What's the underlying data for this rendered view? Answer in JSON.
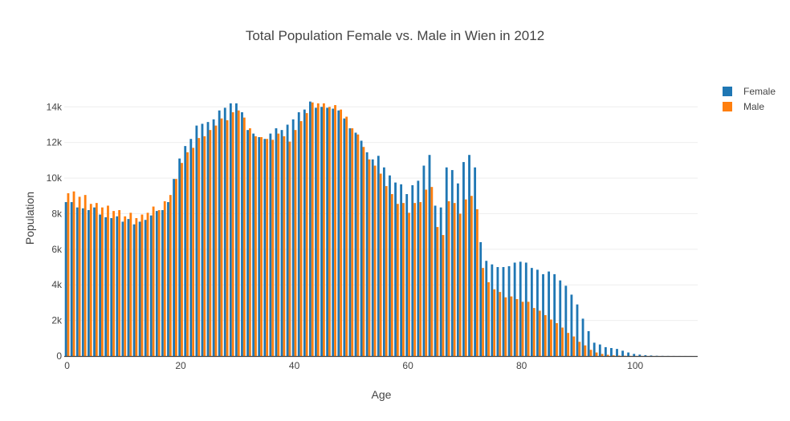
{
  "chart_data": {
    "type": "bar",
    "title": "Total Population Female vs. Male in Wien in 2012",
    "xlabel": "Age",
    "ylabel": "Population",
    "xlim": [
      -0.5,
      111
    ],
    "ylim": [
      0,
      15500
    ],
    "xticks": [
      0,
      20,
      40,
      60,
      80,
      100
    ],
    "yticks": [
      0,
      2000,
      4000,
      6000,
      8000,
      10000,
      12000,
      14000
    ],
    "ytick_labels": [
      "0",
      "2k",
      "4k",
      "6k",
      "8k",
      "10k",
      "12k",
      "14k"
    ],
    "grid": true,
    "legend_position": "top-right",
    "series": [
      {
        "name": "Female",
        "color": "#1f77b4",
        "x": [
          0,
          1,
          2,
          3,
          4,
          5,
          6,
          7,
          8,
          9,
          10,
          11,
          12,
          13,
          14,
          15,
          16,
          17,
          18,
          19,
          20,
          21,
          22,
          23,
          24,
          25,
          26,
          27,
          28,
          29,
          30,
          31,
          32,
          33,
          34,
          35,
          36,
          37,
          38,
          39,
          40,
          41,
          42,
          43,
          44,
          45,
          46,
          47,
          48,
          49,
          50,
          51,
          52,
          53,
          54,
          55,
          56,
          57,
          58,
          59,
          60,
          61,
          62,
          63,
          64,
          65,
          66,
          67,
          68,
          69,
          70,
          71,
          72,
          73,
          74,
          75,
          76,
          77,
          78,
          79,
          80,
          81,
          82,
          83,
          84,
          85,
          86,
          87,
          88,
          89,
          90,
          91,
          92,
          93,
          94,
          95,
          96,
          97,
          98,
          99,
          100,
          101,
          102,
          103,
          104,
          105,
          106,
          107,
          108,
          109,
          110
        ],
        "values": [
          8650,
          8650,
          8350,
          8300,
          8200,
          8350,
          7950,
          7800,
          7750,
          7850,
          7550,
          7700,
          7400,
          7550,
          7650,
          7900,
          8150,
          8200,
          8650,
          9950,
          11100,
          11800,
          12200,
          12950,
          13050,
          13150,
          13300,
          13800,
          13950,
          14200,
          14200,
          13700,
          12700,
          12500,
          12300,
          12200,
          12500,
          12800,
          12700,
          13000,
          13300,
          13700,
          13850,
          14300,
          13950,
          14000,
          13950,
          13900,
          13800,
          13350,
          12800,
          12550,
          12100,
          11450,
          11050,
          11250,
          10600,
          10150,
          9750,
          9650,
          9100,
          9600,
          9850,
          10700,
          11300,
          8450,
          8350,
          10600,
          10450,
          9700,
          10900,
          11300,
          10600,
          6400,
          5350,
          5150,
          5000,
          5000,
          5050,
          5250,
          5300,
          5250,
          4950,
          4850,
          4600,
          4750,
          4600,
          4250,
          3950,
          3450,
          2900,
          2100,
          1400,
          750,
          650,
          500,
          450,
          400,
          300,
          200,
          120,
          80,
          50,
          30,
          15,
          8,
          5,
          3,
          2,
          1,
          1
        ]
      },
      {
        "name": "Male",
        "color": "#ff7f0e",
        "x": [
          0,
          1,
          2,
          3,
          4,
          5,
          6,
          7,
          8,
          9,
          10,
          11,
          12,
          13,
          14,
          15,
          16,
          17,
          18,
          19,
          20,
          21,
          22,
          23,
          24,
          25,
          26,
          27,
          28,
          29,
          30,
          31,
          32,
          33,
          34,
          35,
          36,
          37,
          38,
          39,
          40,
          41,
          42,
          43,
          44,
          45,
          46,
          47,
          48,
          49,
          50,
          51,
          52,
          53,
          54,
          55,
          56,
          57,
          58,
          59,
          60,
          61,
          62,
          63,
          64,
          65,
          66,
          67,
          68,
          69,
          70,
          71,
          72,
          73,
          74,
          75,
          76,
          77,
          78,
          79,
          80,
          81,
          82,
          83,
          84,
          85,
          86,
          87,
          88,
          89,
          90,
          91,
          92,
          93,
          94,
          95,
          96,
          97,
          98,
          99,
          100,
          101,
          102,
          103,
          104,
          105,
          106,
          107,
          108,
          109,
          110
        ],
        "values": [
          9150,
          9250,
          8950,
          9050,
          8550,
          8600,
          8350,
          8450,
          8150,
          8200,
          7850,
          8050,
          7750,
          7950,
          8050,
          8400,
          8200,
          8700,
          9050,
          9950,
          10850,
          11450,
          11700,
          12250,
          12350,
          12700,
          12950,
          13350,
          13250,
          13700,
          13800,
          13400,
          12800,
          12350,
          12300,
          12200,
          12150,
          12500,
          12350,
          12050,
          12700,
          13200,
          13650,
          14250,
          14200,
          14200,
          14000,
          14100,
          13850,
          13450,
          12800,
          12450,
          11750,
          11050,
          10700,
          10250,
          9550,
          9100,
          8550,
          8600,
          8050,
          8600,
          8650,
          9350,
          9500,
          7250,
          6800,
          8700,
          8600,
          8000,
          8800,
          9000,
          8250,
          4950,
          4150,
          3750,
          3600,
          3300,
          3350,
          3200,
          3050,
          3050,
          2700,
          2550,
          2300,
          2050,
          1850,
          1600,
          1300,
          1100,
          800,
          600,
          350,
          200,
          120,
          70,
          40,
          25,
          15,
          8,
          5,
          3,
          2,
          1,
          1,
          0,
          0,
          0,
          0,
          0,
          0
        ]
      }
    ]
  }
}
